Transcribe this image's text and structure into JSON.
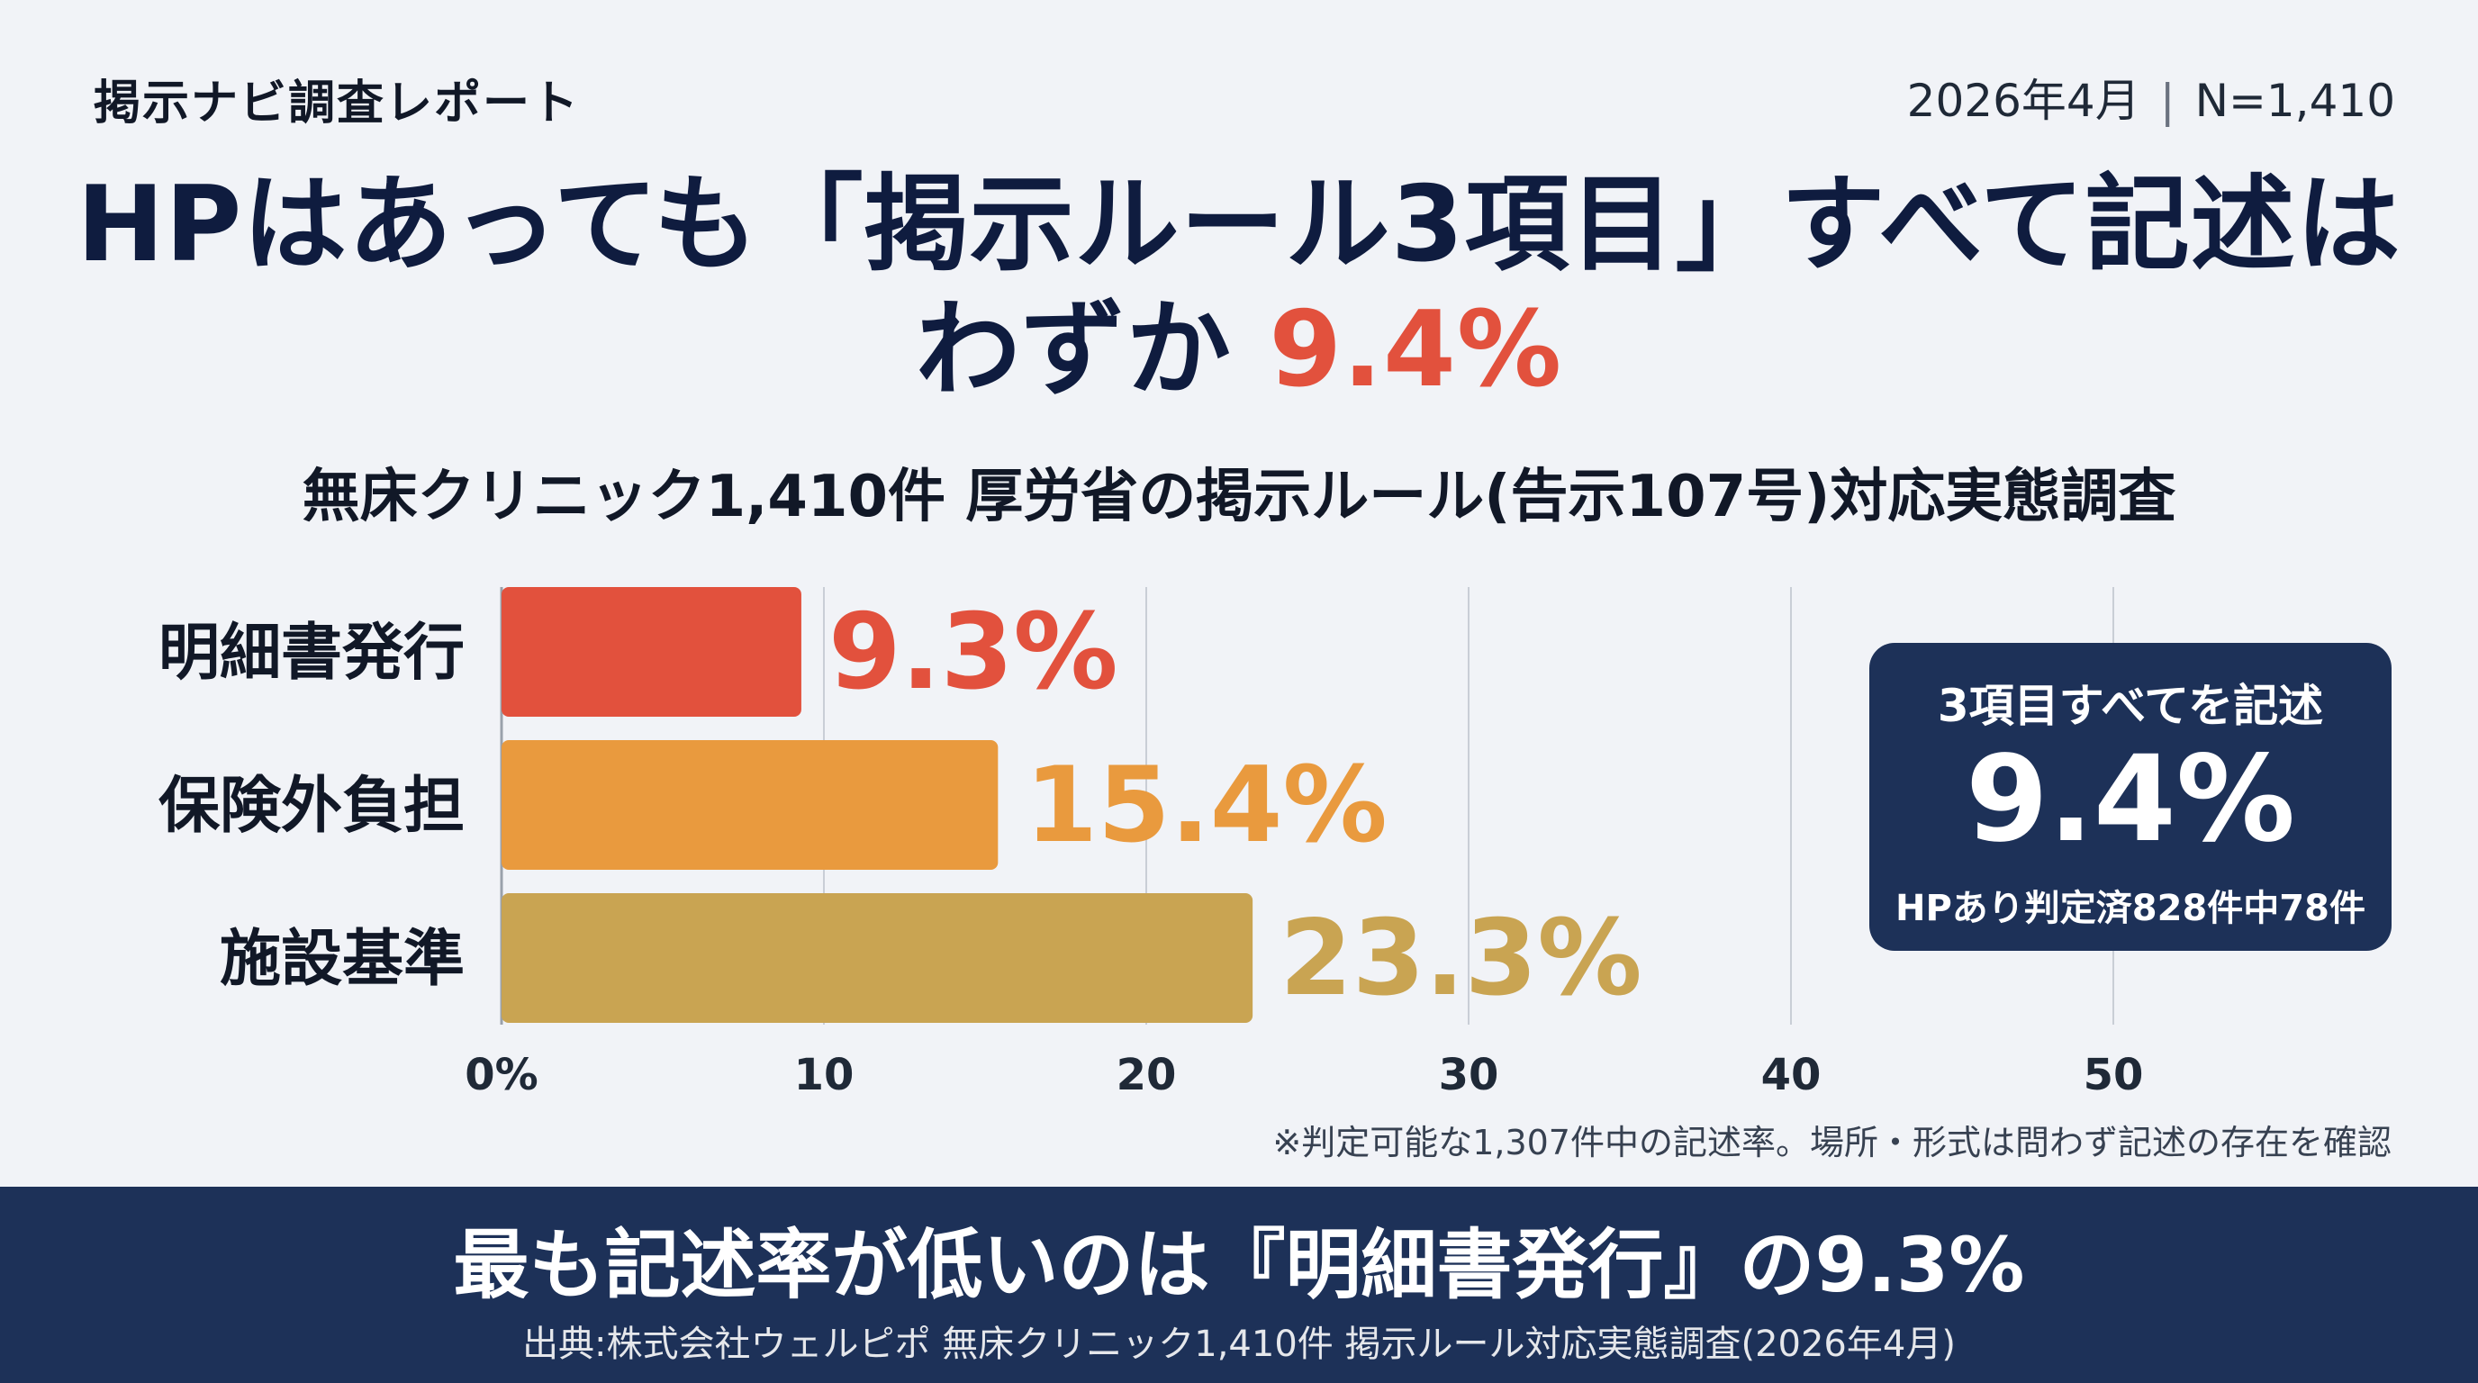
{
  "header": {
    "brand": "掲示ナビ調査レポート",
    "date": "2026年4月",
    "separator": "|",
    "sample": "N=1,410"
  },
  "headline": {
    "line1": "HPはあっても「掲示ルール3項目」すべて記述は",
    "line2_prefix": "わずか",
    "line2_highlight": "9.4%"
  },
  "subtitle": "無床クリニック1,410件 厚労省の掲示ルール(告示107号)対応実態調査",
  "chart_data": {
    "type": "bar",
    "orientation": "horizontal",
    "categories": [
      "明細書発行",
      "保険外負担",
      "施設基準"
    ],
    "values": [
      9.3,
      15.4,
      23.3
    ],
    "value_labels": [
      "9.3%",
      "15.4%",
      "23.3%"
    ],
    "colors": [
      "#e2513d",
      "#e99a3e",
      "#c9a452"
    ],
    "xlim": [
      0,
      55
    ],
    "xticks": [
      0,
      10,
      20,
      30,
      40,
      50
    ],
    "xtick_labels": [
      "0%",
      "10",
      "20",
      "30",
      "40",
      "50"
    ],
    "grid": true,
    "xlabel": "",
    "ylabel": ""
  },
  "note": "※判定可能な1,307件中の記述率。場所・形式は問わず記述の存在を確認",
  "callout": {
    "title": "3項目すべてを記述",
    "value": "9.4%",
    "detail": "HPあり判定済828件中78件"
  },
  "footer": {
    "message": "最も記述率が低いのは『明細書発行』の9.3%",
    "source": "出典:株式会社ウェルピポ 無床クリニック1,410件 掲示ルール対応実態調査(2026年4月)"
  }
}
